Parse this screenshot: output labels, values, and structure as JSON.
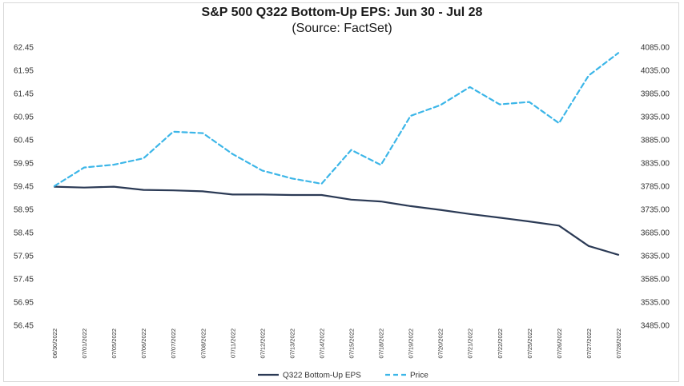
{
  "chart_data": {
    "type": "line",
    "title": "S&P 500 Q322 Bottom-Up EPS: Jun 30 - Jul 28",
    "subtitle": "(Source: FactSet)",
    "categories": [
      "06/30/2022",
      "07/01/2022",
      "07/05/2022",
      "07/06/2022",
      "07/07/2022",
      "07/08/2022",
      "07/11/2022",
      "07/12/2022",
      "07/13/2022",
      "07/14/2022",
      "07/15/2022",
      "07/18/2022",
      "07/19/2022",
      "07/20/2022",
      "07/21/2022",
      "07/22/2022",
      "07/25/2022",
      "07/26/2022",
      "07/27/2022",
      "07/28/2022"
    ],
    "y_left": {
      "ylim": [
        56.45,
        62.45
      ],
      "ticks": [
        "62.45",
        "61.95",
        "61.45",
        "60.95",
        "60.45",
        "59.95",
        "59.45",
        "58.95",
        "58.45",
        "57.95",
        "57.45",
        "56.95",
        "56.45"
      ]
    },
    "y_right": {
      "ylim": [
        3485.0,
        4085.0
      ],
      "ticks": [
        "4085.00",
        "4035.00",
        "3985.00",
        "3935.00",
        "3885.00",
        "3835.00",
        "3785.00",
        "3735.00",
        "3685.00",
        "3635.00",
        "3585.00",
        "3535.00",
        "3485.00"
      ]
    },
    "series": [
      {
        "name": "Q322 Bottom-Up EPS",
        "axis": "left",
        "color": "#2b3a55",
        "style": "solid",
        "values": [
          59.44,
          59.42,
          59.44,
          59.37,
          59.36,
          59.34,
          59.27,
          59.27,
          59.26,
          59.26,
          59.16,
          59.12,
          59.02,
          58.94,
          58.85,
          58.77,
          58.69,
          58.6,
          58.16,
          57.97
        ]
      },
      {
        "name": "Price",
        "axis": "right",
        "color": "#3cb6e8",
        "style": "dashed",
        "values": [
          3785.4,
          3825.3,
          3831.4,
          3845.1,
          3902.6,
          3899.4,
          3854.4,
          3818.8,
          3801.8,
          3790.4,
          3863.2,
          3830.9,
          3936.7,
          3959.9,
          3998.9,
          3961.6,
          3966.8,
          3921.1,
          4023.6,
          4072.4
        ]
      }
    ],
    "legend": "bottom",
    "grid": false
  }
}
